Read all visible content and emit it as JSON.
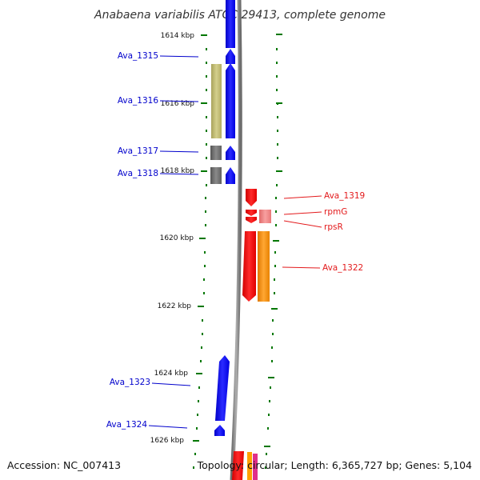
{
  "title": "Anabaena variabilis ATCC 29413, complete genome",
  "footer": {
    "accession": "Accession: NC_007413",
    "topology": "Topology: circular; Length: 6,365,727 bp; Genes: 5,104"
  },
  "kbp_ticks": [
    "1614 kbp",
    "1616 kbp",
    "1618 kbp",
    "1620 kbp",
    "1622 kbp",
    "1624 kbp",
    "1626 kbp"
  ],
  "genes": [
    {
      "name": "Ava_1315",
      "strand": "forward",
      "category": "cds"
    },
    {
      "name": "Ava_1316",
      "strand": "forward",
      "category": "cds"
    },
    {
      "name": "Ava_1317",
      "strand": "forward",
      "category": "cds"
    },
    {
      "name": "Ava_1318",
      "strand": "forward",
      "category": "cds"
    },
    {
      "name": "Ava_1319",
      "strand": "reverse",
      "category": "cds"
    },
    {
      "name": "rpmG",
      "strand": "reverse",
      "category": "cds"
    },
    {
      "name": "rpsR",
      "strand": "reverse",
      "category": "cds"
    },
    {
      "name": "Ava_1322",
      "strand": "reverse",
      "category": "cds"
    },
    {
      "name": "Ava_1323",
      "strand": "forward",
      "category": "cds"
    },
    {
      "name": "Ava_1324",
      "strand": "forward",
      "category": "cds"
    }
  ],
  "colors": {
    "forward_cds": "#0000ff",
    "reverse_cds": "#ff0000",
    "feature_khaki": "#bdb76b",
    "feature_grey": "#696969",
    "feature_orange": "#ff8c00",
    "feature_pink": "#f08080",
    "backbone": "#808080",
    "tick": "#007700",
    "forward_label": "#0000cc",
    "reverse_label": "#e31a1c"
  }
}
